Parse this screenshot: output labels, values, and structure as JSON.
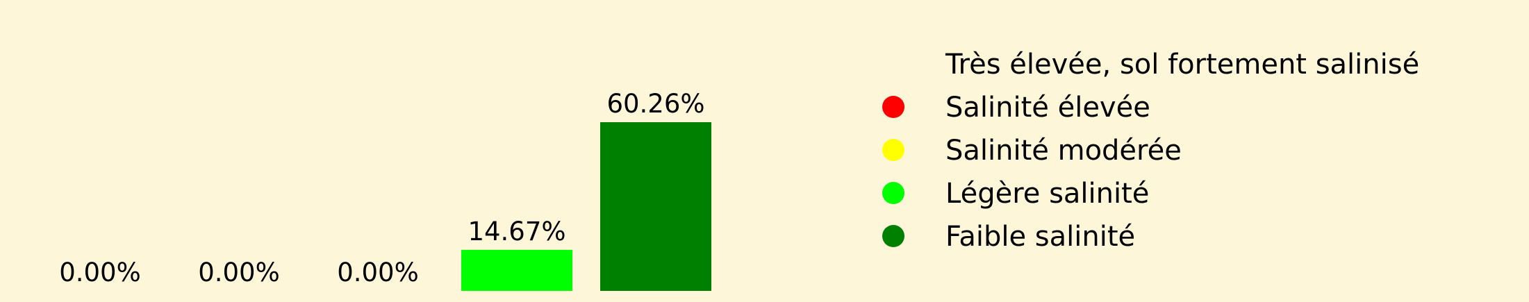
{
  "chart_data": {
    "type": "bar",
    "categories": [
      "Très élevée, sol fortement salinisé",
      "Salinité élevée",
      "Salinité modérée",
      "Légère salinité",
      "Faible salinité"
    ],
    "values": [
      0.0,
      0.0,
      0.0,
      14.67,
      60.26
    ],
    "data_labels": [
      "0.00%",
      "0.00%",
      "0.00%",
      "14.67%",
      "60.26%"
    ],
    "colors": [
      "#fdf6d9",
      "#ff0000",
      "#ffff00",
      "#00ff00",
      "#008000"
    ],
    "title": "",
    "xlabel": "",
    "ylabel": "",
    "ylim": [
      0,
      60.26
    ],
    "grid": false,
    "legend": {
      "placement": "right",
      "entries": [
        {
          "label": "Très élevée, sol fortement salinisé",
          "color": "#fdf6d9"
        },
        {
          "label": "Salinité élevée",
          "color": "#ff0000"
        },
        {
          "label": "Salinité modérée",
          "color": "#ffff00"
        },
        {
          "label": "Légère salinité",
          "color": "#00ff00"
        },
        {
          "label": "Faible salinité",
          "color": "#008000"
        }
      ]
    }
  }
}
